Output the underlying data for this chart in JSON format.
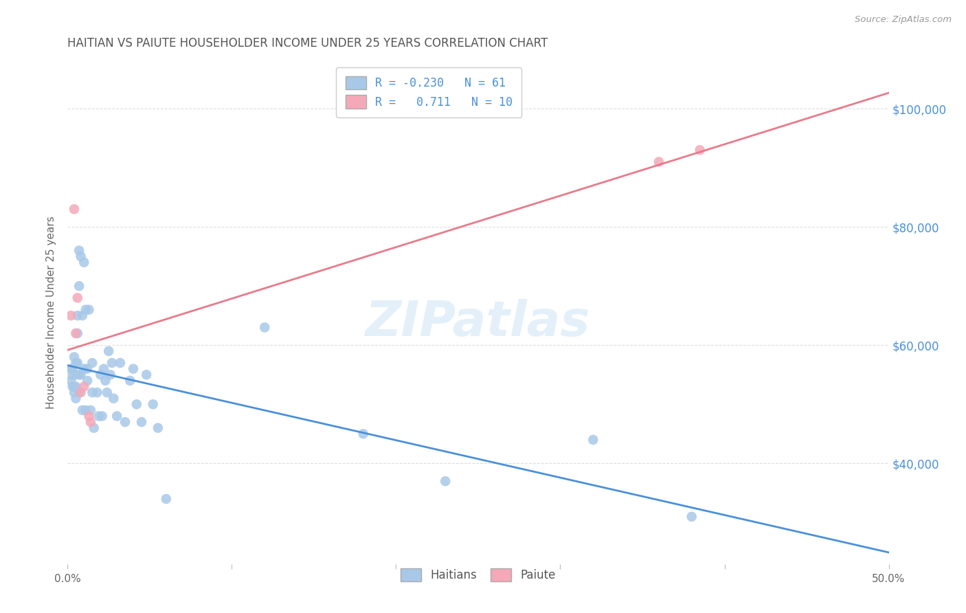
{
  "title": "HAITIAN VS PAIUTE HOUSEHOLDER INCOME UNDER 25 YEARS CORRELATION CHART",
  "source": "Source: ZipAtlas.com",
  "ylabel": "Householder Income Under 25 years",
  "xlim": [
    0.0,
    0.5
  ],
  "ylim": [
    23000,
    108000
  ],
  "ytick_values": [
    40000,
    60000,
    80000,
    100000
  ],
  "ytick_labels_right": [
    "$40,000",
    "$60,000",
    "$80,000",
    "$100,000"
  ],
  "watermark": "ZIPatlas",
  "haitians_color": "#a8c8e8",
  "paiute_color": "#f4a8b8",
  "haitians_line_color": "#4a90d9",
  "paiute_line_color": "#e87a8a",
  "background_color": "#ffffff",
  "grid_color": "#dddddd",
  "haitians_x": [
    0.002,
    0.002,
    0.003,
    0.003,
    0.003,
    0.004,
    0.004,
    0.004,
    0.005,
    0.005,
    0.005,
    0.005,
    0.006,
    0.006,
    0.006,
    0.007,
    0.007,
    0.007,
    0.007,
    0.008,
    0.008,
    0.009,
    0.009,
    0.01,
    0.01,
    0.011,
    0.011,
    0.012,
    0.012,
    0.013,
    0.014,
    0.015,
    0.015,
    0.016,
    0.018,
    0.019,
    0.02,
    0.021,
    0.022,
    0.023,
    0.024,
    0.025,
    0.026,
    0.027,
    0.028,
    0.03,
    0.032,
    0.035,
    0.038,
    0.04,
    0.042,
    0.045,
    0.048,
    0.052,
    0.055,
    0.06,
    0.12,
    0.18,
    0.23,
    0.32,
    0.38
  ],
  "haitians_y": [
    56000,
    54000,
    56000,
    53000,
    55000,
    58000,
    53000,
    52000,
    57000,
    55000,
    53000,
    51000,
    65000,
    62000,
    57000,
    76000,
    70000,
    55000,
    52000,
    75000,
    55000,
    65000,
    49000,
    74000,
    56000,
    66000,
    49000,
    56000,
    54000,
    66000,
    49000,
    57000,
    52000,
    46000,
    52000,
    48000,
    55000,
    48000,
    56000,
    54000,
    52000,
    59000,
    55000,
    57000,
    51000,
    48000,
    57000,
    47000,
    54000,
    56000,
    50000,
    47000,
    55000,
    50000,
    46000,
    34000,
    63000,
    45000,
    37000,
    44000,
    31000
  ],
  "paiute_x": [
    0.002,
    0.004,
    0.005,
    0.006,
    0.008,
    0.01,
    0.013,
    0.014,
    0.36,
    0.385
  ],
  "paiute_y": [
    65000,
    83000,
    62000,
    68000,
    52000,
    53000,
    48000,
    47000,
    91000,
    93000
  ]
}
